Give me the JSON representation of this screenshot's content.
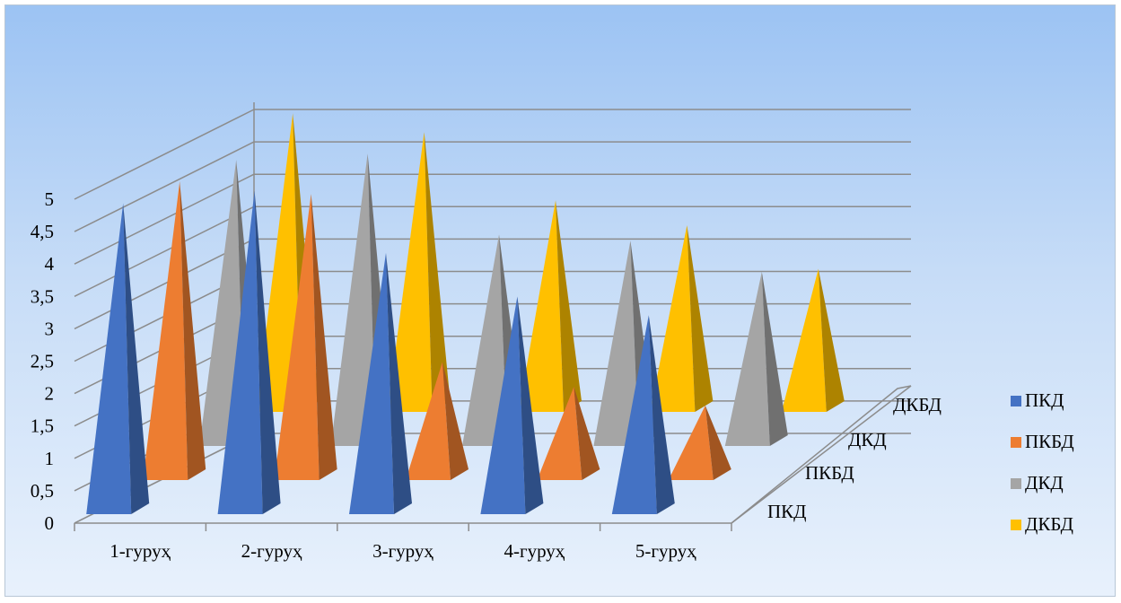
{
  "chart_data": {
    "type": "bar",
    "style": "3d-pyramid",
    "categories": [
      "1-гуруҳ",
      "2-гуруҳ",
      "3-гуруҳ",
      "4-гуруҳ",
      "5-гуруҳ"
    ],
    "series": [
      {
        "name": "ПКД",
        "color": "#4472c4",
        "values": [
          5.0,
          5.2,
          4.2,
          3.5,
          3.2
        ]
      },
      {
        "name": "ПКБД",
        "color": "#ed7d31",
        "values": [
          4.8,
          4.6,
          1.9,
          1.5,
          1.2
        ]
      },
      {
        "name": "ДКД",
        "color": "#a5a5a5",
        "values": [
          4.6,
          4.7,
          3.4,
          3.3,
          2.8
        ]
      },
      {
        "name": "ДКБД",
        "color": "#ffc000",
        "values": [
          4.8,
          4.5,
          3.4,
          3.0,
          2.3
        ]
      }
    ],
    "y_ticks": [
      "0",
      "0,5",
      "1",
      "1,5",
      "2",
      "2,5",
      "3",
      "3,5",
      "4",
      "4,5",
      "5"
    ],
    "ylim": [
      0,
      5
    ],
    "depth_labels": [
      "ПКД",
      "ПКБД",
      "ДКД",
      "ДКБД"
    ],
    "legend": [
      "ПКД",
      "ПКБД",
      "ДКД",
      "ДКБД"
    ],
    "legend_position": "right",
    "grid": true,
    "title": "",
    "xlabel": "",
    "ylabel": ""
  }
}
